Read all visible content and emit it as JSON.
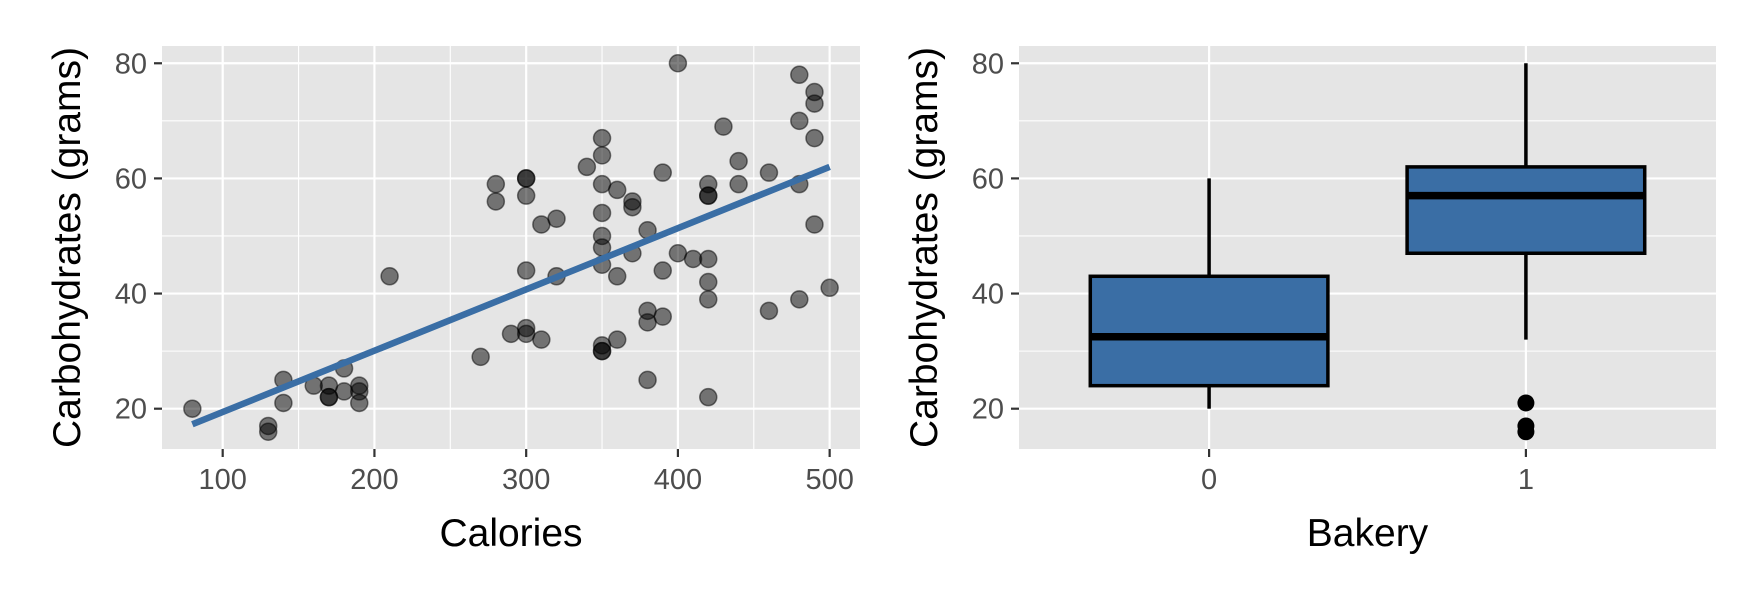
{
  "chart_data": [
    {
      "type": "scatter",
      "xlabel": "Calories",
      "ylabel": "Carbohydrates (grams)",
      "xlim": [
        60,
        520
      ],
      "ylim": [
        13,
        83
      ],
      "x_ticks": [
        100,
        200,
        300,
        400,
        500
      ],
      "y_ticks": [
        20,
        40,
        60,
        80
      ],
      "grid": true,
      "point_color": "#000000",
      "point_opacity": 0.5,
      "line_color": "#3a6ea5",
      "points": [
        [
          80,
          20
        ],
        [
          130,
          17
        ],
        [
          130,
          16
        ],
        [
          140,
          25
        ],
        [
          140,
          21
        ],
        [
          160,
          24
        ],
        [
          170,
          22
        ],
        [
          170,
          22
        ],
        [
          170,
          24
        ],
        [
          180,
          27
        ],
        [
          180,
          23
        ],
        [
          190,
          24
        ],
        [
          190,
          21
        ],
        [
          190,
          23
        ],
        [
          210,
          43
        ],
        [
          270,
          29
        ],
        [
          280,
          59
        ],
        [
          280,
          56
        ],
        [
          290,
          33
        ],
        [
          300,
          60
        ],
        [
          300,
          60
        ],
        [
          300,
          57
        ],
        [
          300,
          44
        ],
        [
          300,
          34
        ],
        [
          300,
          33
        ],
        [
          310,
          52
        ],
        [
          310,
          32
        ],
        [
          320,
          53
        ],
        [
          320,
          43
        ],
        [
          340,
          62
        ],
        [
          350,
          67
        ],
        [
          350,
          64
        ],
        [
          350,
          59
        ],
        [
          350,
          54
        ],
        [
          350,
          50
        ],
        [
          350,
          48
        ],
        [
          350,
          45
        ],
        [
          350,
          31
        ],
        [
          350,
          30
        ],
        [
          350,
          30
        ],
        [
          360,
          58
        ],
        [
          360,
          43
        ],
        [
          360,
          32
        ],
        [
          370,
          56
        ],
        [
          370,
          55
        ],
        [
          370,
          47
        ],
        [
          380,
          51
        ],
        [
          380,
          37
        ],
        [
          380,
          35
        ],
        [
          380,
          25
        ],
        [
          390,
          61
        ],
        [
          390,
          44
        ],
        [
          390,
          36
        ],
        [
          400,
          80
        ],
        [
          400,
          47
        ],
        [
          410,
          46
        ],
        [
          420,
          59
        ],
        [
          420,
          57
        ],
        [
          420,
          57
        ],
        [
          420,
          46
        ],
        [
          420,
          42
        ],
        [
          420,
          39
        ],
        [
          420,
          22
        ],
        [
          430,
          69
        ],
        [
          440,
          63
        ],
        [
          440,
          59
        ],
        [
          460,
          61
        ],
        [
          460,
          37
        ],
        [
          480,
          78
        ],
        [
          480,
          70
        ],
        [
          480,
          59
        ],
        [
          480,
          39
        ],
        [
          490,
          75
        ],
        [
          490,
          73
        ],
        [
          490,
          67
        ],
        [
          490,
          52
        ],
        [
          500,
          41
        ]
      ],
      "fit_line": {
        "x": [
          80,
          500
        ],
        "y": [
          17.3,
          62.0
        ]
      }
    },
    {
      "type": "boxplot",
      "xlabel": "Bakery",
      "ylabel": "Carbohydrates (grams)",
      "categories": [
        "0",
        "1"
      ],
      "ylim": [
        13,
        83
      ],
      "y_ticks": [
        20,
        40,
        60,
        80
      ],
      "grid": true,
      "fill_color": "#3a6ea5",
      "boxes": [
        {
          "category": "0",
          "whisker_low": 20,
          "q1": 24,
          "median": 32.5,
          "q3": 43,
          "whisker_high": 60,
          "outliers": []
        },
        {
          "category": "1",
          "whisker_low": 32,
          "q1": 47,
          "median": 57,
          "q3": 62,
          "whisker_high": 80,
          "outliers": [
            21,
            17,
            16
          ]
        }
      ]
    }
  ]
}
